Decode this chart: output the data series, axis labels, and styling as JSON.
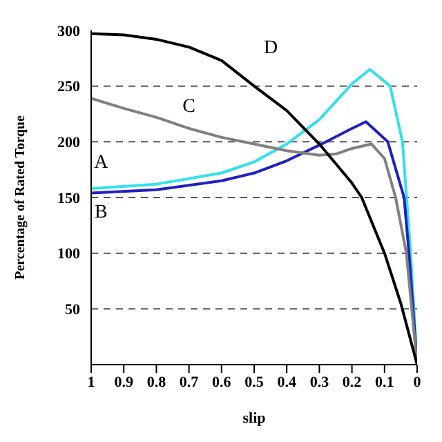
{
  "chart_data": {
    "type": "line",
    "xlabel": "slip",
    "ylabel": "Percentage of Rated Torque",
    "xlim": [
      1,
      0
    ],
    "xticks": [
      1,
      0.9,
      0.8,
      0.7,
      0.6,
      0.5,
      0.4,
      0.3,
      0.2,
      0.1,
      0
    ],
    "ylim": [
      0,
      300
    ],
    "yticks": [
      50,
      100,
      150,
      200,
      250,
      300
    ],
    "grid": "y",
    "legend": false,
    "marker": "none",
    "line_style": "solid",
    "series": [
      {
        "name": "A",
        "color": "#33e0f0",
        "x": [
          1,
          0.8,
          0.6,
          0.5,
          0.4,
          0.3,
          0.2,
          0.145,
          0.083,
          0.045,
          0.02,
          0
        ],
        "values": [
          158,
          162,
          172,
          182,
          198,
          220,
          252,
          265,
          250,
          200,
          100,
          0
        ]
      },
      {
        "name": "B",
        "color": "#2020c0",
        "x": [
          1,
          0.8,
          0.6,
          0.5,
          0.4,
          0.3,
          0.2,
          0.157,
          0.09,
          0.04,
          0.025,
          0
        ],
        "values": [
          154,
          157,
          165,
          172,
          183,
          197,
          212,
          218,
          200,
          150,
          100,
          0
        ]
      },
      {
        "name": "C",
        "color": "#808080",
        "x": [
          1,
          0.9,
          0.8,
          0.7,
          0.6,
          0.5,
          0.4,
          0.3,
          0.25,
          0.2,
          0.14,
          0.1,
          0.066,
          0.033,
          0
        ],
        "values": [
          239,
          230,
          222,
          212,
          204,
          198,
          192,
          188,
          189,
          194,
          198,
          185,
          150,
          100,
          0
        ]
      },
      {
        "name": "D",
        "color": "#000000",
        "x": [
          1,
          0.9,
          0.8,
          0.7,
          0.6,
          0.5,
          0.4,
          0.3,
          0.2,
          0.17,
          0.1,
          0.05,
          0
        ],
        "values": [
          297,
          296,
          292,
          285,
          273,
          250,
          228,
          198,
          163,
          150,
          100,
          55,
          0
        ]
      }
    ]
  }
}
